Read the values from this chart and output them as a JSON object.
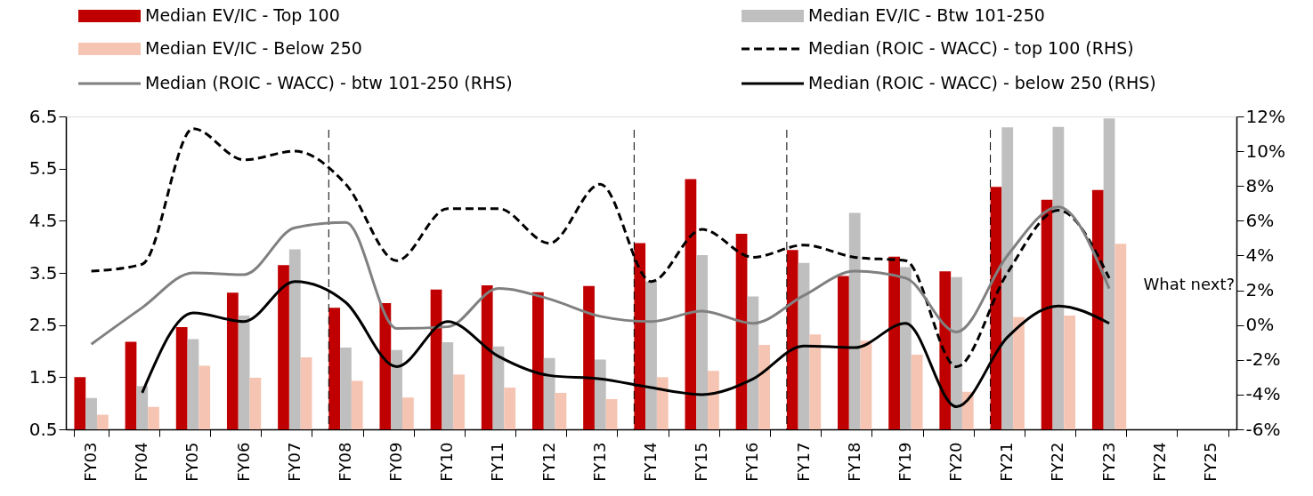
{
  "chart_data": {
    "type": "bar",
    "categories": [
      "FY03",
      "FY04",
      "FY05",
      "FY06",
      "FY07",
      "FY08",
      "FY09",
      "FY10",
      "FY11",
      "FY12",
      "FY13",
      "FY14",
      "FY15",
      "FY16",
      "FY17",
      "FY18",
      "FY19",
      "FY20",
      "FY21",
      "FY22",
      "FY23",
      "FY24",
      "FY25"
    ],
    "series": [
      {
        "name": "Median EV/IC - Top 100",
        "color": "#c00000",
        "values": [
          1.5,
          2.18,
          2.46,
          3.12,
          3.65,
          2.83,
          2.92,
          3.18,
          3.26,
          3.13,
          3.25,
          4.07,
          5.3,
          4.25,
          3.94,
          3.44,
          3.81,
          3.53,
          5.15,
          4.9,
          5.09,
          null,
          null
        ]
      },
      {
        "name": "Median EV/IC - Btw 101-250",
        "color": "#bfbfbf",
        "values": [
          1.1,
          1.33,
          2.23,
          2.68,
          3.95,
          2.07,
          2.02,
          2.17,
          2.09,
          1.87,
          1.84,
          3.34,
          3.84,
          3.05,
          3.69,
          4.65,
          3.61,
          3.42,
          6.29,
          6.3,
          6.46,
          null,
          null
        ]
      },
      {
        "name": "Median EV/IC - Below 250",
        "color": "#f6c4b2",
        "values": [
          0.78,
          0.93,
          1.72,
          1.49,
          1.88,
          1.43,
          1.11,
          1.55,
          1.3,
          1.2,
          1.08,
          1.5,
          1.62,
          2.12,
          2.32,
          2.2,
          1.93,
          1.22,
          2.65,
          2.68,
          4.06,
          null,
          null
        ]
      },
      {
        "name": "Median (ROIC - WACC) - top 100 (RHS)",
        "type": "line",
        "axis": "y2",
        "line_style": "dashed",
        "color": "#000000",
        "values": [
          3.1,
          3.5,
          11.3,
          9.5,
          10.0,
          8.1,
          3.7,
          6.7,
          6.7,
          4.7,
          8.1,
          2.5,
          5.5,
          3.9,
          4.6,
          3.9,
          3.7,
          -2.4,
          3.0,
          6.6,
          2.7,
          null,
          null
        ]
      },
      {
        "name": "Median (ROIC - WACC) - btw 101-250 (RHS)",
        "type": "line",
        "axis": "y2",
        "line_style": "solid",
        "color": "#808080",
        "values": [
          -1.1,
          1.0,
          3.0,
          2.9,
          5.6,
          5.9,
          -0.2,
          -0.1,
          2.1,
          1.5,
          0.5,
          0.2,
          0.8,
          0.1,
          1.7,
          3.1,
          2.7,
          -0.4,
          4.0,
          6.8,
          2.1,
          null,
          null
        ]
      },
      {
        "name": "Median (ROIC - WACC) - below 250 (RHS)",
        "type": "line",
        "axis": "y2",
        "line_style": "solid",
        "color": "#000000",
        "values": [
          null,
          -3.9,
          0.7,
          0.2,
          2.5,
          1.3,
          -2.4,
          0.2,
          -1.8,
          -2.9,
          -3.1,
          -3.6,
          -4.0,
          -3.1,
          -1.2,
          -1.3,
          0.1,
          -4.7,
          -0.7,
          1.1,
          0.1,
          null,
          null
        ]
      }
    ],
    "ylim": [
      0.5,
      6.5
    ],
    "yticks": [
      0.5,
      1.5,
      2.5,
      3.5,
      4.5,
      5.5,
      6.5
    ],
    "y2lim": [
      -6,
      12
    ],
    "y2ticks": [
      {
        "value": -6,
        "label": "-6%"
      },
      {
        "value": -4,
        "label": "-4%"
      },
      {
        "value": -2,
        "label": "-2%"
      },
      {
        "value": 0,
        "label": "0%"
      },
      {
        "value": 2,
        "label": "2%"
      },
      {
        "value": 4,
        "label": "4%"
      },
      {
        "value": 6,
        "label": "6%"
      },
      {
        "value": 8,
        "label": "8%"
      },
      {
        "value": 10,
        "label": "10%"
      },
      {
        "value": 12,
        "label": "12%"
      }
    ],
    "ref_lines": [
      {
        "axis": "x",
        "value": "FY08",
        "line_style": "dashed",
        "color": "#000000"
      },
      {
        "axis": "x",
        "value": "FY14",
        "line_style": "dashed",
        "color": "#000000"
      },
      {
        "axis": "x",
        "value": "FY17",
        "line_style": "dashed",
        "color": "#000000"
      },
      {
        "axis": "x",
        "value": "FY21",
        "line_style": "dashed",
        "color": "#000000"
      }
    ],
    "annotations": [
      "What next?"
    ],
    "grid": false,
    "legend": "top"
  }
}
